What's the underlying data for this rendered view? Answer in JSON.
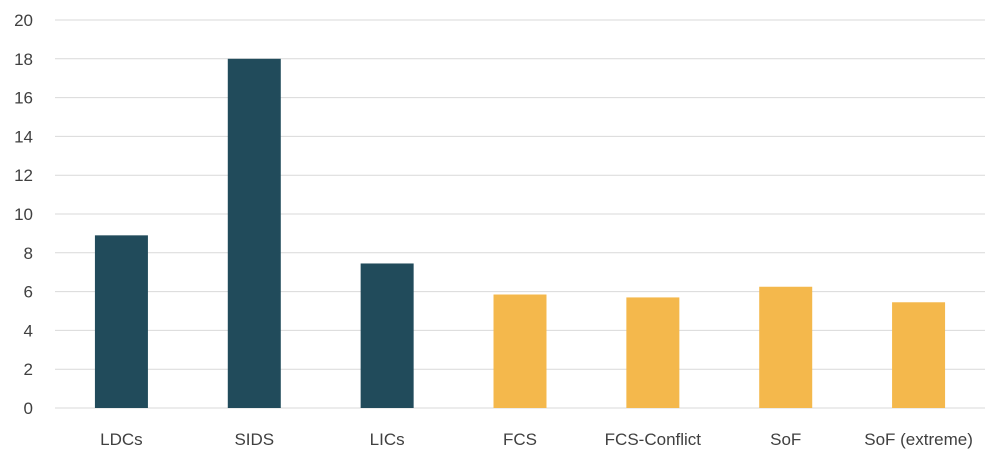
{
  "chart_data": {
    "type": "bar",
    "title": "",
    "xlabel": "",
    "ylabel": "",
    "ylim": [
      0,
      20
    ],
    "yticks": [
      0,
      2,
      4,
      6,
      8,
      10,
      12,
      14,
      16,
      18,
      20
    ],
    "grid": true,
    "legend": "none",
    "categories": [
      "LDCs",
      "SIDS",
      "LICs",
      "FCS",
      "FCS-Conflict",
      "SoF",
      "SoF (extreme)"
    ],
    "values": [
      8.9,
      18.0,
      7.45,
      5.85,
      5.7,
      6.25,
      5.45
    ],
    "bar_colors": [
      "#214b5b",
      "#214b5b",
      "#214b5b",
      "#f4b84c",
      "#f4b84c",
      "#f4b84c",
      "#f4b84c"
    ],
    "gridline_color": "#d9d9d9",
    "tick_label_color": "#404040"
  }
}
